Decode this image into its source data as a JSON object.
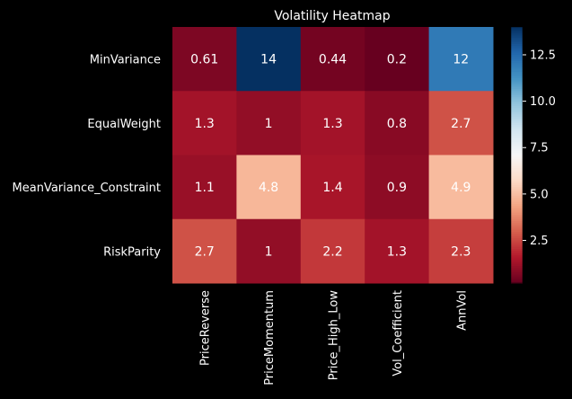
{
  "chart_data": {
    "type": "heatmap",
    "title": "Volatility Heatmap",
    "xlabel": "",
    "ylabel": "",
    "rows": [
      "MinVariance",
      "EqualWeight",
      "MeanVariance_Constraint",
      "RiskParity"
    ],
    "columns": [
      "PriceReverse",
      "PriceMomentum",
      "Price_High_Low",
      "Vol_Coefficient",
      "AnnVol"
    ],
    "values": [
      [
        0.61,
        14,
        0.44,
        0.2,
        12
      ],
      [
        1.3,
        1,
        1.3,
        0.8,
        2.7
      ],
      [
        1.1,
        4.8,
        1.4,
        0.9,
        4.9
      ],
      [
        2.7,
        1,
        2.2,
        1.3,
        2.3
      ]
    ],
    "cell_labels": [
      [
        "0.61",
        "14",
        "0.44",
        "0.2",
        "12"
      ],
      [
        "1.3",
        "1",
        "1.3",
        "0.8",
        "2.7"
      ],
      [
        "1.1",
        "4.8",
        "1.4",
        "0.9",
        "4.9"
      ],
      [
        "2.7",
        "1",
        "2.2",
        "1.3",
        "2.3"
      ]
    ],
    "colorbar": {
      "colormap": "RdBu",
      "vmin": 0.2,
      "vmax": 14,
      "ticks": [
        2.5,
        5.0,
        7.5,
        10.0,
        12.5
      ],
      "tick_labels": [
        "2.5",
        "5.0",
        "7.5",
        "10.0",
        "12.5"
      ]
    },
    "colors": {
      "background": "#000000",
      "text": "#ffffff"
    }
  }
}
